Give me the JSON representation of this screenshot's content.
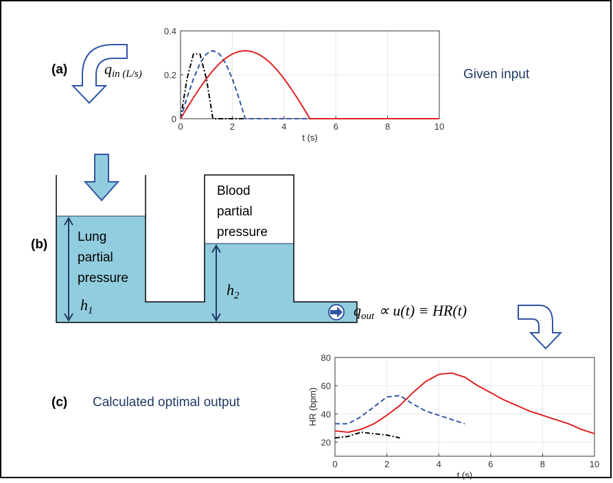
{
  "chart_data": [
    {
      "type": "line",
      "xlabel": "t (s)",
      "xlim": [
        0,
        10
      ],
      "ylim": [
        0,
        0.4
      ],
      "xticks": [
        0,
        2,
        4,
        6,
        8,
        10
      ],
      "yticks": [
        0,
        0.2,
        0.4
      ],
      "grid": true,
      "x": [
        0,
        0.25,
        0.5,
        0.75,
        1,
        1.25,
        1.5,
        1.75,
        2,
        2.25,
        2.5,
        2.75,
        3,
        3.25,
        3.5,
        3.75,
        4,
        4.25,
        4.5,
        4.75,
        5,
        6,
        7,
        8,
        9,
        10
      ],
      "series": [
        {
          "color": "#000000",
          "style": "dashdot",
          "values": [
            0,
            0.182,
            0.295,
            0.295,
            0.182,
            0,
            0,
            0,
            0,
            0,
            0,
            null,
            null,
            null,
            null,
            null,
            null,
            null,
            null,
            null,
            null,
            null,
            null,
            null,
            null,
            null
          ]
        },
        {
          "color": "#2e54a4",
          "style": "dashed",
          "values": [
            0,
            0.096,
            0.182,
            0.251,
            0.295,
            0.31,
            0.295,
            0.251,
            0.182,
            0.096,
            0,
            0,
            0,
            0,
            0,
            0,
            0,
            0,
            0,
            0,
            0,
            null,
            null,
            null,
            null,
            null
          ]
        },
        {
          "color": "#e02020",
          "style": "solid",
          "values": [
            0,
            0.049,
            0.096,
            0.141,
            0.182,
            0.219,
            0.251,
            0.276,
            0.295,
            0.306,
            0.31,
            0.306,
            0.295,
            0.276,
            0.251,
            0.219,
            0.182,
            0.141,
            0.096,
            0.049,
            0,
            0,
            0,
            0,
            0,
            0
          ]
        }
      ]
    },
    {
      "type": "line",
      "xlabel": "t (s)",
      "ylabel": "HR (bpm)",
      "xlim": [
        0,
        10
      ],
      "ylim": [
        10,
        80
      ],
      "xticks": [
        0,
        2,
        4,
        6,
        8,
        10
      ],
      "yticks": [
        20,
        40,
        60,
        80
      ],
      "grid": true,
      "x": [
        0,
        0.5,
        1,
        1.5,
        2,
        2.5,
        3,
        3.5,
        4,
        4.5,
        5,
        5.5,
        6,
        6.5,
        7,
        7.5,
        8,
        8.5,
        9,
        9.5,
        10
      ],
      "series": [
        {
          "color": "#000000",
          "style": "dashdot",
          "values": [
            23,
            24,
            27,
            26,
            25,
            23,
            null,
            null,
            null,
            null,
            null,
            null,
            null,
            null,
            null,
            null,
            null,
            null,
            null,
            null,
            null
          ]
        },
        {
          "color": "#2e54a4",
          "style": "dashed",
          "values": [
            33,
            33,
            38,
            45,
            52,
            53,
            47,
            42,
            39,
            36,
            33,
            null,
            null,
            null,
            null,
            null,
            null,
            null,
            null,
            null,
            null
          ]
        },
        {
          "color": "#e02020",
          "style": "solid",
          "values": [
            28,
            27,
            29,
            33,
            39,
            46,
            55,
            63,
            68,
            69,
            66,
            60,
            55,
            50,
            46,
            42,
            39,
            36,
            33,
            29,
            26
          ]
        }
      ]
    }
  ],
  "diagram": {
    "panel_a": "(a)",
    "panel_b": "(b)",
    "panel_c": "(c)",
    "input_label": "Given input",
    "output_label": "Calculated optimal output",
    "q_in": {
      "base": "q",
      "sub": "in (L/s)"
    },
    "lung": [
      "Lung",
      "partial",
      "pressure"
    ],
    "blood": [
      "Blood",
      "partial",
      "pressure"
    ],
    "h1": {
      "base": "h",
      "sub": "1"
    },
    "h2": {
      "base": "h",
      "sub": "2"
    },
    "q_out": {
      "base": "q",
      "sub": "out",
      "rest": "∝  u(t) ≡ HR(t)"
    }
  }
}
